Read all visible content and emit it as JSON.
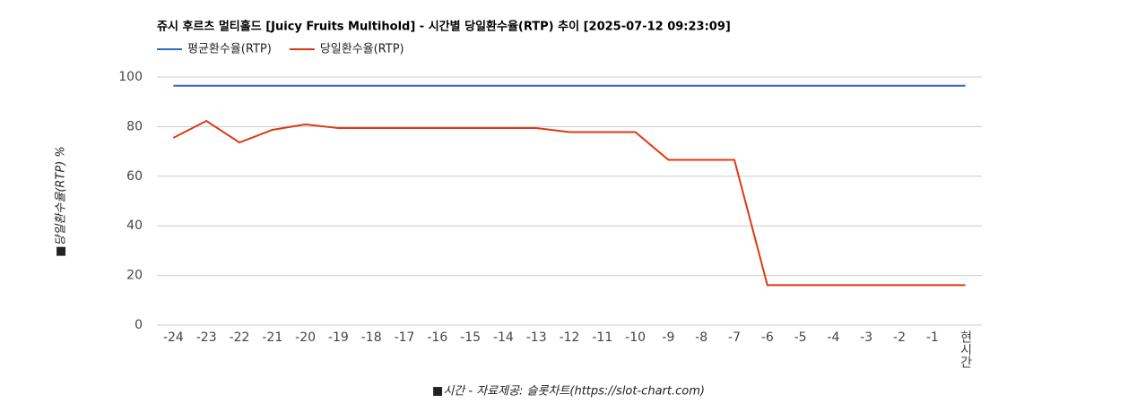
{
  "chart_data": {
    "type": "line",
    "title": "쥬시 후르츠 멀티홀드 [Juicy Fruits Multihold] - 시간별 당일환수율(RTP) 추이 [2025-07-12 09:23:09]",
    "x_label": "■시간 - 자료제공: 슬롯차트(https://slot-chart.com)",
    "y_label": "■당일환수율(RTP) %",
    "categories": [
      "-24",
      "-23",
      "-22",
      "-21",
      "-20",
      "-19",
      "-18",
      "-17",
      "-16",
      "-15",
      "-14",
      "-13",
      "-12",
      "-11",
      "-10",
      "-9",
      "-8",
      "-7",
      "-6",
      "-5",
      "-4",
      "-3",
      "-2",
      "-1",
      "현시간"
    ],
    "series": [
      {
        "name": "평균환수율(RTP)",
        "color": "#3366cc",
        "values": [
          96.5,
          96.5,
          96.5,
          96.5,
          96.5,
          96.5,
          96.5,
          96.5,
          96.5,
          96.5,
          96.5,
          96.5,
          96.5,
          96.5,
          96.5,
          96.5,
          96.5,
          96.5,
          96.5,
          96.5,
          96.5,
          96.5,
          96.5,
          96.5,
          96.5
        ]
      },
      {
        "name": "당일환수율(RTP)",
        "color": "#dc3912",
        "values": [
          75.5,
          82.3,
          73.6,
          78.7,
          80.9,
          79.4,
          79.4,
          79.4,
          79.4,
          79.4,
          79.4,
          79.4,
          77.8,
          77.8,
          77.8,
          66.6,
          66.6,
          66.6,
          16.1,
          16.1,
          16.1,
          16.1,
          16.1,
          16.1,
          16.1
        ]
      }
    ],
    "ylim": [
      0,
      100
    ],
    "yticks": [
      0,
      20,
      40,
      60,
      80,
      100
    ],
    "grid": true
  }
}
